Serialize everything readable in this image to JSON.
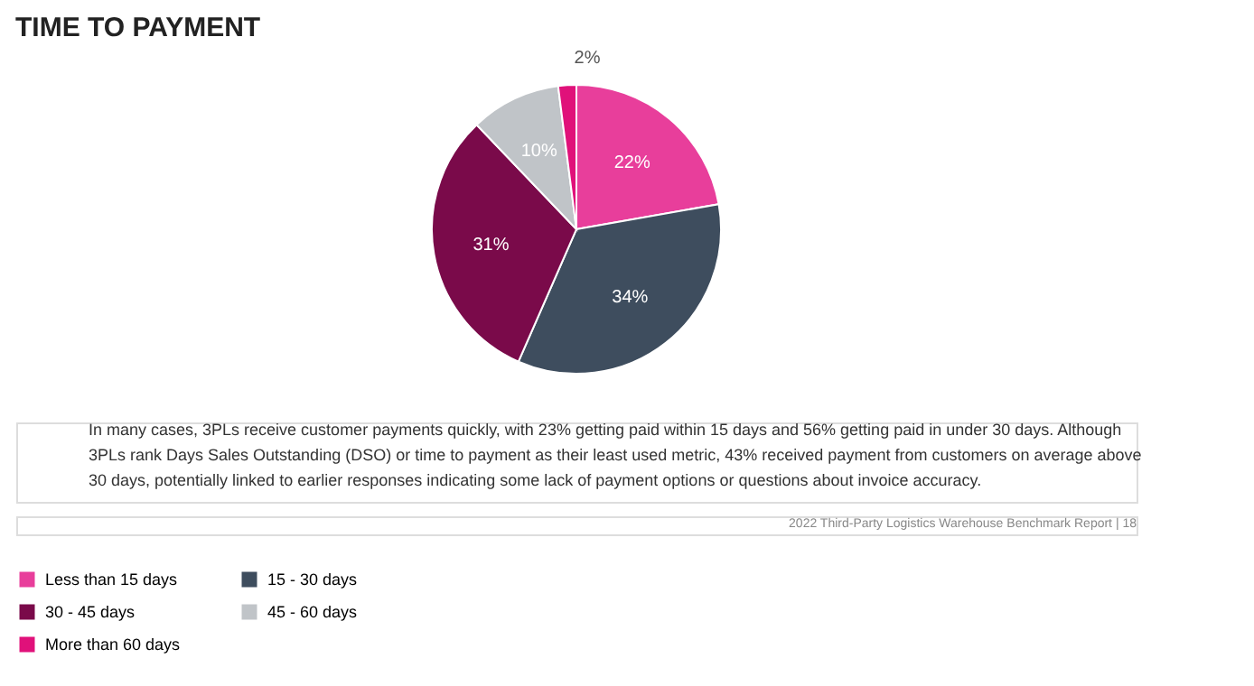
{
  "chart_data": {
    "type": "pie",
    "title": "TIME TO PAYMENT",
    "categories": [
      "Less than 15 days",
      "15 - 30 days",
      "30 - 45 days",
      "45 - 60 days",
      "More than 60 days"
    ],
    "values": [
      22,
      34,
      31,
      10,
      2
    ],
    "colors": [
      "#e83e9b",
      "#3e4d5e",
      "#7a0a4a",
      "#c0c4c8",
      "#e0117a"
    ],
    "value_labels": [
      "22%",
      "34%",
      "31%",
      "10%",
      "2%"
    ],
    "legend": "bottom",
    "annotations": [
      "In many cases, 3PLs receive customer payments quickly, with 23% getting paid within 15 days and 56% getting paid in under 30 days. Although 3PLs rank Days Sales Outstanding (DSO) or time to payment as their least used metric, 43% received payment from customers on average above 30 days, potentially linked to earlier responses indicating some lack of payment options or questions about invoice accuracy.",
      "2022 Third-Party Logistics Warehouse Benchmark Report | 18"
    ]
  }
}
